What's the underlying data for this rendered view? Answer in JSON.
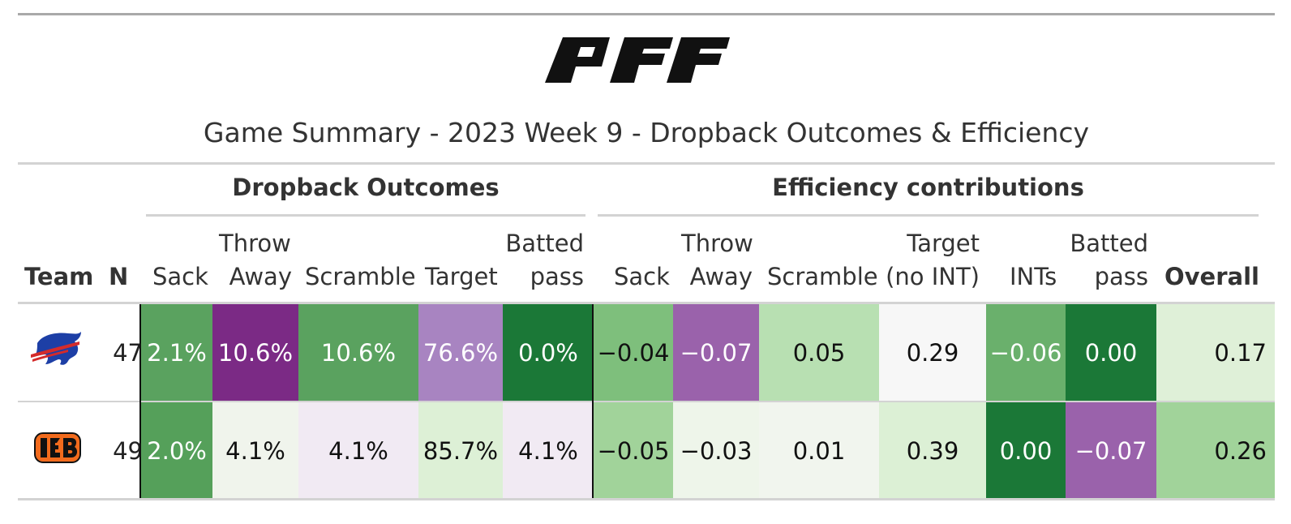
{
  "brand": {
    "logo_text": "PFF"
  },
  "title": "Game Summary - 2023 Week 9 - Dropback Outcomes & Efficiency",
  "spanners": {
    "outcomes": "Dropback Outcomes",
    "efficiency": "Efficiency contributions"
  },
  "columns": {
    "team": "Team",
    "n": "N",
    "sack": "Sack",
    "throw_away": [
      "Throw",
      "Away"
    ],
    "scramble": "Scramble",
    "target": "Target",
    "batted": [
      "Batted",
      "pass"
    ],
    "eff_sack": "Sack",
    "eff_throw_away": [
      "Throw",
      "Away"
    ],
    "eff_scramble": "Scramble",
    "eff_target": [
      "Target",
      "(no INT)"
    ],
    "eff_ints": "INTs",
    "eff_batted": [
      "Batted",
      "pass"
    ],
    "overall": "Overall"
  },
  "rows": [
    {
      "team_logo": "bills-logo",
      "n": "47",
      "cells": [
        {
          "text": "2.1%",
          "bg": "#5aa25f",
          "fg": "#ffffff"
        },
        {
          "text": "10.6%",
          "bg": "#7b2a85",
          "fg": "#ffffff"
        },
        {
          "text": "10.6%",
          "bg": "#5aa25f",
          "fg": "#ffffff"
        },
        {
          "text": "76.6%",
          "bg": "#a884c1",
          "fg": "#ffffff"
        },
        {
          "text": "0.0%",
          "bg": "#1b7837",
          "fg": "#ffffff"
        },
        {
          "text": "−0.04",
          "bg": "#7ebf7c",
          "fg": "#111111"
        },
        {
          "text": "−0.07",
          "bg": "#9a62ab",
          "fg": "#ffffff"
        },
        {
          "text": "0.05",
          "bg": "#b8e0b2",
          "fg": "#111111"
        },
        {
          "text": "0.29",
          "bg": "#f7f7f7",
          "fg": "#111111"
        },
        {
          "text": "−0.06",
          "bg": "#6ab06c",
          "fg": "#ffffff"
        },
        {
          "text": "0.00",
          "bg": "#1b7837",
          "fg": "#ffffff"
        },
        {
          "text": "0.17",
          "bg": "#dff0d8",
          "fg": "#111111"
        }
      ]
    },
    {
      "team_logo": "bengals-logo",
      "n": "49",
      "cells": [
        {
          "text": "2.0%",
          "bg": "#55a05a",
          "fg": "#ffffff"
        },
        {
          "text": "4.1%",
          "bg": "#f0f4ec",
          "fg": "#111111"
        },
        {
          "text": "4.1%",
          "bg": "#f1eaf3",
          "fg": "#111111"
        },
        {
          "text": "85.7%",
          "bg": "#ddf0d6",
          "fg": "#111111"
        },
        {
          "text": "4.1%",
          "bg": "#f1eaf3",
          "fg": "#111111"
        },
        {
          "text": "−0.05",
          "bg": "#a1d39a",
          "fg": "#111111"
        },
        {
          "text": "−0.03",
          "bg": "#eef5ea",
          "fg": "#111111"
        },
        {
          "text": "0.01",
          "bg": "#f1f5ee",
          "fg": "#111111"
        },
        {
          "text": "0.39",
          "bg": "#dcf0d5",
          "fg": "#111111"
        },
        {
          "text": "0.00",
          "bg": "#1b7837",
          "fg": "#ffffff"
        },
        {
          "text": "−0.07",
          "bg": "#9a62ab",
          "fg": "#ffffff"
        },
        {
          "text": "0.26",
          "bg": "#a1d39a",
          "fg": "#111111"
        }
      ]
    }
  ]
}
